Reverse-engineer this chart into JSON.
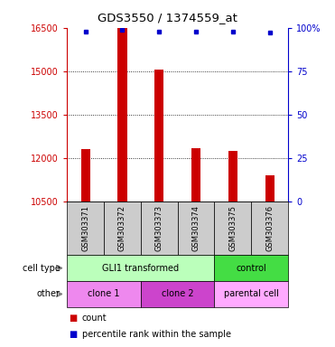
{
  "title": "GDS3550 / 1374559_at",
  "samples": [
    "GSM303371",
    "GSM303372",
    "GSM303373",
    "GSM303374",
    "GSM303375",
    "GSM303376"
  ],
  "counts": [
    12300,
    16500,
    15050,
    12350,
    12250,
    11400
  ],
  "percentile_ranks": [
    98,
    99,
    98,
    98,
    98,
    97
  ],
  "ylim_left": [
    10500,
    16500
  ],
  "yticks_left": [
    10500,
    12000,
    13500,
    15000,
    16500
  ],
  "yticks_right": [
    0,
    25,
    50,
    75,
    100
  ],
  "ylim_right": [
    0,
    100
  ],
  "bar_color": "#cc0000",
  "dot_color": "#0000cc",
  "cell_type_groups": [
    {
      "label": "GLI1 transformed",
      "start": 0,
      "end": 4,
      "color": "#bbffbb"
    },
    {
      "label": "control",
      "start": 4,
      "end": 6,
      "color": "#44dd44"
    }
  ],
  "other_groups": [
    {
      "label": "clone 1",
      "start": 0,
      "end": 2,
      "color": "#ee88ee"
    },
    {
      "label": "clone 2",
      "start": 2,
      "end": 4,
      "color": "#cc44cc"
    },
    {
      "label": "parental cell",
      "start": 4,
      "end": 6,
      "color": "#ffaaff"
    }
  ],
  "legend_count_label": "count",
  "legend_pct_label": "percentile rank within the sample",
  "cell_type_label": "cell type",
  "other_label": "other",
  "bar_color_label": "#cc0000",
  "right_axis_color": "#0000cc",
  "grid_color": "#000000",
  "bg_color": "#ffffff",
  "plot_bg_color": "#ffffff",
  "tick_label_color_left": "#cc0000",
  "tick_label_color_right": "#0000cc",
  "bar_width": 0.25
}
